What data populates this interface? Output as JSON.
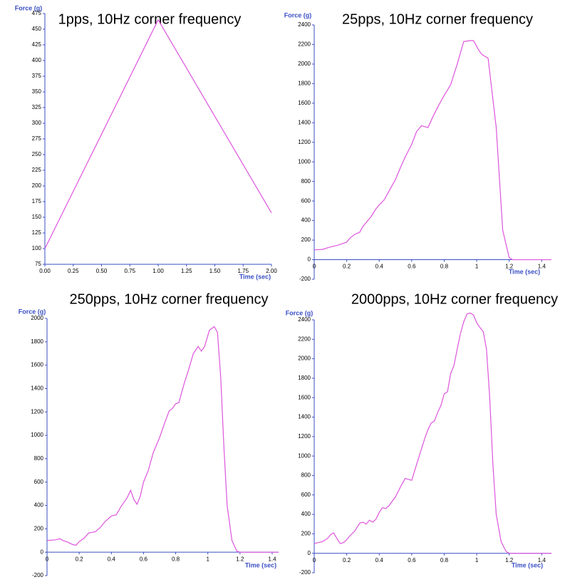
{
  "chart_data": [
    {
      "type": "line",
      "title": "1pps, 10Hz corner frequency",
      "y_label": "Force (g)",
      "x_label": "Time (sec)",
      "color": "#dd55dd",
      "x": [
        0,
        1,
        2
      ],
      "values": [
        100,
        465,
        157
      ],
      "xlim": [
        0,
        2
      ],
      "ylim": [
        75,
        475
      ],
      "xticks": [
        {
          "value": 0,
          "label": "0.00"
        },
        {
          "value": 0.25,
          "label": "0.25"
        },
        {
          "value": 0.5,
          "label": "0.50"
        },
        {
          "value": 0.75,
          "label": "0.75"
        },
        {
          "value": 1,
          "label": "1.00"
        },
        {
          "value": 1.25,
          "label": "1.25"
        },
        {
          "value": 1.5,
          "label": "1.50"
        },
        {
          "value": 1.75,
          "label": "1.75"
        },
        {
          "value": 2,
          "label": "2.00"
        }
      ],
      "yticks": [
        75,
        100,
        125,
        150,
        175,
        200,
        225,
        250,
        275,
        300,
        325,
        350,
        375,
        400,
        425,
        450,
        475
      ]
    },
    {
      "type": "line",
      "title": "25pps, 10Hz corner frequency",
      "y_label": "Force (g)",
      "x_label": "Time (sec)",
      "color": "#dd55dd",
      "x": [
        0,
        0.05,
        0.1,
        0.15,
        0.2,
        0.22,
        0.25,
        0.28,
        0.3,
        0.33,
        0.35,
        0.38,
        0.4,
        0.43,
        0.46,
        0.5,
        0.53,
        0.56,
        0.6,
        0.63,
        0.66,
        0.7,
        0.73,
        0.76,
        0.8,
        0.84,
        0.88,
        0.92,
        0.96,
        0.98,
        1.01,
        1.03,
        1.07,
        1.12,
        1.16,
        1.2,
        1.22,
        1.3,
        1.4,
        1.46
      ],
      "values": [
        100,
        105,
        130,
        150,
        180,
        220,
        260,
        280,
        340,
        400,
        440,
        520,
        560,
        610,
        700,
        820,
        940,
        1050,
        1180,
        1310,
        1370,
        1350,
        1460,
        1560,
        1680,
        1790,
        2000,
        2230,
        2240,
        2240,
        2150,
        2100,
        2060,
        1350,
        300,
        20,
        0,
        0,
        0,
        0
      ],
      "xlim": [
        0,
        1.46
      ],
      "ylim": [
        -200,
        2400
      ],
      "xticks": [
        0,
        0.2,
        0.4,
        0.6,
        0.8,
        1,
        1.2,
        1.4
      ],
      "yticks": [
        -200,
        0,
        200,
        400,
        600,
        800,
        1000,
        1200,
        1400,
        1600,
        1800,
        2000,
        2200,
        2400
      ]
    },
    {
      "type": "line",
      "title": "250pps, 10Hz corner frequency",
      "y_label": "Force (g)",
      "x_label": "Time (sec)",
      "color": "#dd55dd",
      "x": [
        0,
        0.05,
        0.08,
        0.1,
        0.13,
        0.16,
        0.18,
        0.2,
        0.23,
        0.26,
        0.3,
        0.33,
        0.36,
        0.4,
        0.43,
        0.46,
        0.5,
        0.52,
        0.54,
        0.56,
        0.58,
        0.6,
        0.63,
        0.66,
        0.7,
        0.73,
        0.76,
        0.78,
        0.8,
        0.82,
        0.85,
        0.88,
        0.91,
        0.94,
        0.96,
        0.98,
        1.01,
        1.04,
        1.06,
        1.08,
        1.1,
        1.12,
        1.15,
        1.18,
        1.2,
        1.3,
        1.44
      ],
      "values": [
        100,
        105,
        115,
        100,
        85,
        65,
        60,
        90,
        120,
        165,
        175,
        210,
        260,
        310,
        320,
        390,
        470,
        530,
        450,
        410,
        480,
        600,
        700,
        850,
        980,
        1100,
        1210,
        1230,
        1270,
        1280,
        1430,
        1560,
        1700,
        1760,
        1720,
        1760,
        1900,
        1930,
        1880,
        1500,
        900,
        400,
        100,
        10,
        0,
        0,
        0
      ],
      "xlim": [
        0,
        1.44
      ],
      "ylim": [
        -200,
        2000
      ],
      "xticks": [
        0,
        0.2,
        0.4,
        0.6,
        0.8,
        1,
        1.2,
        1.4
      ],
      "yticks": [
        -200,
        0,
        200,
        400,
        600,
        800,
        1000,
        1200,
        1400,
        1600,
        1800,
        2000
      ]
    },
    {
      "type": "line",
      "title": "2000pps, 10Hz corner frequency",
      "y_label": "Force (g)",
      "x_label": "Time (sec)",
      "color": "#dd55dd",
      "x": [
        0,
        0.05,
        0.08,
        0.1,
        0.12,
        0.14,
        0.16,
        0.18,
        0.2,
        0.22,
        0.25,
        0.28,
        0.3,
        0.32,
        0.34,
        0.36,
        0.38,
        0.4,
        0.42,
        0.44,
        0.46,
        0.5,
        0.53,
        0.56,
        0.58,
        0.6,
        0.62,
        0.65,
        0.68,
        0.7,
        0.72,
        0.74,
        0.76,
        0.78,
        0.8,
        0.82,
        0.84,
        0.86,
        0.88,
        0.9,
        0.92,
        0.94,
        0.96,
        0.98,
        1,
        1.02,
        1.04,
        1.06,
        1.08,
        1.1,
        1.12,
        1.15,
        1.18,
        1.2,
        1.3,
        1.46
      ],
      "values": [
        100,
        120,
        150,
        190,
        210,
        150,
        100,
        110,
        140,
        180,
        230,
        310,
        320,
        300,
        340,
        320,
        350,
        420,
        470,
        460,
        490,
        580,
        680,
        770,
        760,
        750,
        860,
        1020,
        1180,
        1270,
        1340,
        1360,
        1450,
        1520,
        1640,
        1660,
        1850,
        1930,
        2100,
        2260,
        2380,
        2460,
        2470,
        2450,
        2370,
        2320,
        2280,
        2100,
        1600,
        900,
        400,
        120,
        20,
        0,
        0,
        0
      ],
      "xlim": [
        0,
        1.46
      ],
      "ylim": [
        -200,
        2400
      ],
      "xticks": [
        0,
        0.2,
        0.4,
        0.6,
        0.8,
        1,
        1.2,
        1.4
      ],
      "yticks": [
        -200,
        0,
        200,
        400,
        600,
        800,
        1000,
        1200,
        1400,
        1600,
        1800,
        2000,
        2200,
        2400
      ]
    }
  ]
}
